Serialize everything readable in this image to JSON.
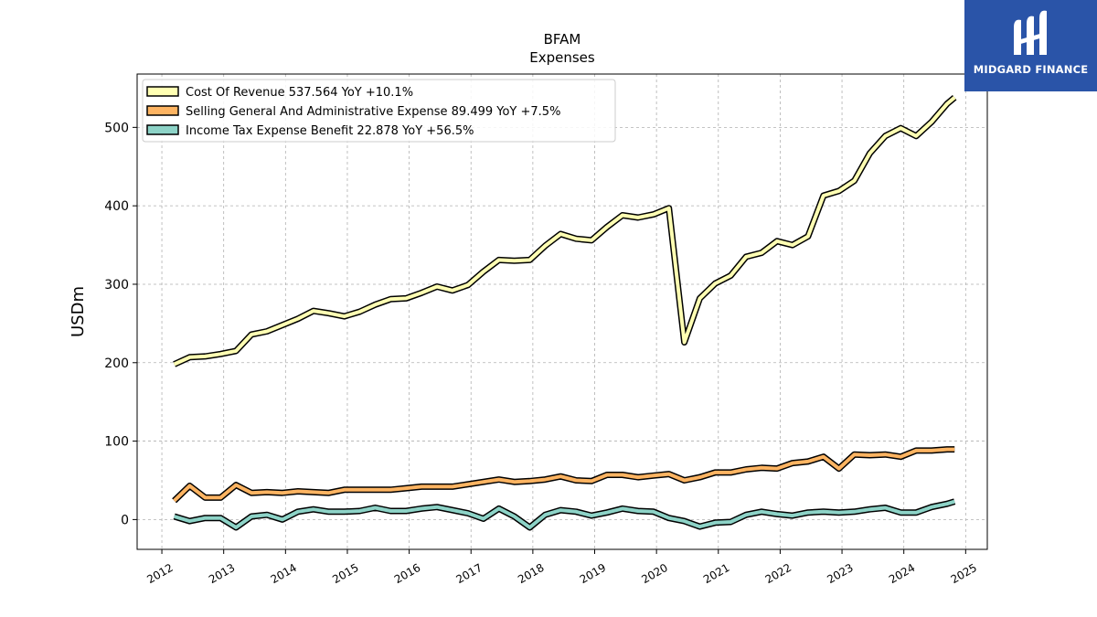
{
  "chart_data": {
    "type": "line",
    "title": "BFAM",
    "subtitle": "Expenses",
    "ylabel": "USDm",
    "xlabel": "",
    "xlim": [
      2011.6,
      2025.35
    ],
    "ylim": [
      -38,
      568
    ],
    "yticks": [
      0,
      100,
      200,
      300,
      400,
      500
    ],
    "xticks": [
      "2012",
      "2013",
      "2014",
      "2015",
      "2016",
      "2017",
      "2018",
      "2019",
      "2020",
      "2021",
      "2022",
      "2023",
      "2024",
      "2025"
    ],
    "grid": true,
    "legend_position": "top-left",
    "x": [
      2012.2,
      2012.45,
      2012.7,
      2012.95,
      2013.2,
      2013.45,
      2013.7,
      2013.95,
      2014.2,
      2014.45,
      2014.7,
      2014.95,
      2015.2,
      2015.45,
      2015.7,
      2015.95,
      2016.2,
      2016.45,
      2016.7,
      2016.95,
      2017.2,
      2017.45,
      2017.7,
      2017.95,
      2018.2,
      2018.45,
      2018.7,
      2018.95,
      2019.2,
      2019.45,
      2019.7,
      2019.95,
      2020.2,
      2020.45,
      2020.7,
      2020.95,
      2021.2,
      2021.45,
      2021.7,
      2021.95,
      2022.2,
      2022.45,
      2022.7,
      2022.95,
      2023.2,
      2023.45,
      2023.7,
      2023.95,
      2024.2,
      2024.45,
      2024.7,
      2024.82
    ],
    "series": [
      {
        "name": "Cost Of Revenue",
        "legend_label": "Cost Of Revenue  537.564 YoY +10.1%",
        "color": "#ffffb3",
        "values": [
          198,
          207,
          208,
          211,
          215,
          236,
          240,
          248,
          256,
          266,
          263,
          259,
          265,
          274,
          281,
          282,
          289,
          297,
          292,
          299,
          316,
          331,
          330,
          331,
          349,
          364,
          358,
          356,
          373,
          388,
          385,
          389,
          397,
          226,
          282,
          301,
          311,
          335,
          340,
          355,
          350,
          361,
          413,
          419,
          432,
          467,
          489,
          499,
          489,
          507,
          530,
          538
        ]
      },
      {
        "name": "Selling General And Administrative Expense",
        "legend_label": "Selling General And Administrative Expense  89.499 YoY +7.5%",
        "color": "#fdb462",
        "values": [
          24,
          43,
          28,
          28,
          44,
          34,
          35,
          34,
          36,
          35,
          34,
          38,
          38,
          38,
          38,
          40,
          42,
          42,
          42,
          45,
          48,
          51,
          48,
          49,
          51,
          55,
          50,
          49,
          57,
          57,
          54,
          56,
          58,
          50,
          54,
          60,
          60,
          64,
          66,
          65,
          72,
          74,
          80,
          65,
          83,
          82,
          83,
          80,
          88,
          88,
          89.5,
          89.5
        ]
      },
      {
        "name": "Income Tax Expense Benefit",
        "legend_label": "Income Tax Expense Benefit  22.878 YoY +56.5%",
        "color": "#8dd3c7",
        "values": [
          4,
          -2,
          2,
          2,
          -10,
          4,
          6,
          0,
          10,
          13,
          10,
          10,
          11,
          15,
          11,
          11,
          14,
          16,
          12,
          8,
          1,
          14,
          4,
          -10,
          6,
          12,
          10,
          5,
          9,
          14,
          11,
          10,
          2,
          -2,
          -9,
          -4,
          -3,
          6,
          10,
          7,
          5,
          9,
          10,
          9,
          10,
          13,
          15,
          9,
          9,
          16,
          20,
          22.9
        ]
      }
    ]
  },
  "logo": {
    "text": "MIDGARD FINANCE",
    "bg_color": "#2a54a8"
  }
}
